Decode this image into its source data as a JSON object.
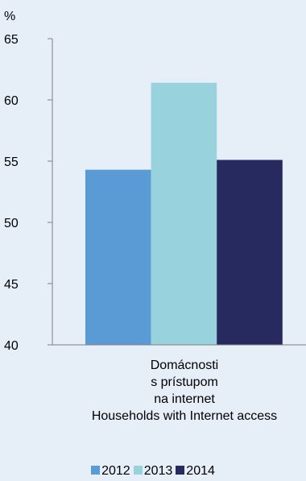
{
  "chart_data": {
    "type": "bar",
    "unit_label": "%",
    "categories": [
      "Domácnosti s prístupom na internet Households with Internet access"
    ],
    "category_label_lines": [
      "Domácnosti",
      "s prístupom",
      "na internet",
      "Households with Internet access"
    ],
    "series": [
      {
        "name": "2012",
        "values": [
          54.3
        ],
        "color": "#5b9bd5"
      },
      {
        "name": "2013",
        "values": [
          61.4
        ],
        "color": "#98d2dc"
      },
      {
        "name": "2014",
        "values": [
          55.1
        ],
        "color": "#262a5f"
      }
    ],
    "ylim": [
      40,
      65
    ],
    "yticks": [
      "40",
      "45",
      "50",
      "55",
      "60",
      "65"
    ],
    "grid": false,
    "legend_position": "bottom"
  }
}
